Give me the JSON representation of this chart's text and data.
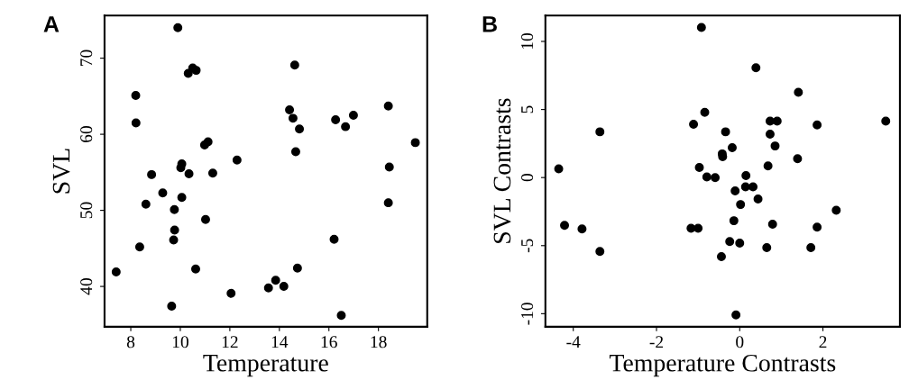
{
  "chart_data": [
    {
      "type": "scatter",
      "xlabel": "Temperature",
      "ylabel": "SVL",
      "annotations": [
        "A"
      ],
      "color": "#000000",
      "marker": "circle",
      "grid": false,
      "legend": false,
      "xlim": [
        6.94,
        19.97
      ],
      "ylim": [
        34.7,
        75.6
      ],
      "xticks": [
        8,
        10,
        12,
        14,
        16,
        18
      ],
      "yticks": [
        40,
        50,
        60,
        70
      ],
      "x": [
        7.41,
        8.2,
        8.21,
        8.36,
        8.61,
        8.84,
        9.29,
        9.65,
        9.73,
        9.77,
        9.76,
        9.9,
        10.06,
        10.06,
        10.02,
        10.32,
        10.35,
        10.5,
        10.64,
        10.62,
        11.02,
        10.98,
        11.12,
        11.31,
        12.29,
        12.05,
        13.56,
        13.85,
        14.18,
        14.41,
        14.55,
        14.62,
        14.66,
        14.81,
        14.73,
        16.21,
        16.27,
        16.5,
        16.67,
        16.99,
        18.4,
        18.44,
        18.4,
        19.49
      ],
      "values": [
        41.9,
        65.1,
        61.5,
        45.2,
        50.8,
        54.7,
        52.3,
        37.4,
        46.1,
        47.4,
        50.1,
        74.0,
        51.7,
        56.1,
        55.6,
        68.0,
        54.8,
        68.7,
        68.4,
        42.3,
        48.8,
        58.6,
        59.0,
        54.9,
        56.6,
        39.1,
        39.8,
        40.8,
        40.0,
        63.2,
        62.1,
        69.1,
        57.7,
        60.7,
        42.4,
        46.2,
        61.9,
        36.2,
        61.0,
        62.5,
        63.7,
        55.7,
        51.0,
        58.9
      ]
    },
    {
      "type": "scatter",
      "xlabel": "Temperature Contrasts",
      "ylabel": "SVL Contrasts",
      "annotations": [
        "B"
      ],
      "color": "#000000",
      "marker": "circle",
      "grid": false,
      "legend": false,
      "xlim": [
        -4.67,
        3.85
      ],
      "ylim": [
        -10.96,
        11.9
      ],
      "xticks": [
        -4,
        -2,
        0,
        2
      ],
      "yticks": [
        -10,
        -5,
        0,
        5,
        10
      ],
      "x": [
        -4.35,
        -4.21,
        -3.79,
        -3.36,
        -3.36,
        -1.17,
        -1.0,
        -1.11,
        -0.92,
        -0.84,
        -0.97,
        -0.79,
        -0.59,
        -0.44,
        -0.42,
        -0.41,
        -0.34,
        -0.18,
        -0.24,
        -0.14,
        -0.11,
        -0.09,
        0.0,
        0.02,
        0.15,
        0.14,
        0.32,
        0.44,
        0.39,
        0.65,
        0.68,
        0.73,
        0.73,
        0.9,
        0.85,
        0.79,
        1.39,
        1.41,
        1.71,
        1.86,
        1.86,
        2.32,
        3.51
      ],
      "values": [
        0.64,
        -3.51,
        -3.77,
        3.36,
        -5.43,
        -3.72,
        -3.72,
        3.91,
        11.02,
        4.79,
        0.74,
        0.04,
        0.0,
        -5.81,
        1.74,
        1.53,
        3.36,
        2.19,
        -4.7,
        -3.17,
        -0.98,
        -10.09,
        -4.81,
        -1.98,
        0.15,
        -0.68,
        -0.68,
        -1.57,
        8.06,
        -5.15,
        0.85,
        3.19,
        4.15,
        4.15,
        2.32,
        -3.43,
        1.38,
        6.26,
        -5.15,
        3.87,
        -3.64,
        -2.4,
        4.15
      ]
    }
  ]
}
